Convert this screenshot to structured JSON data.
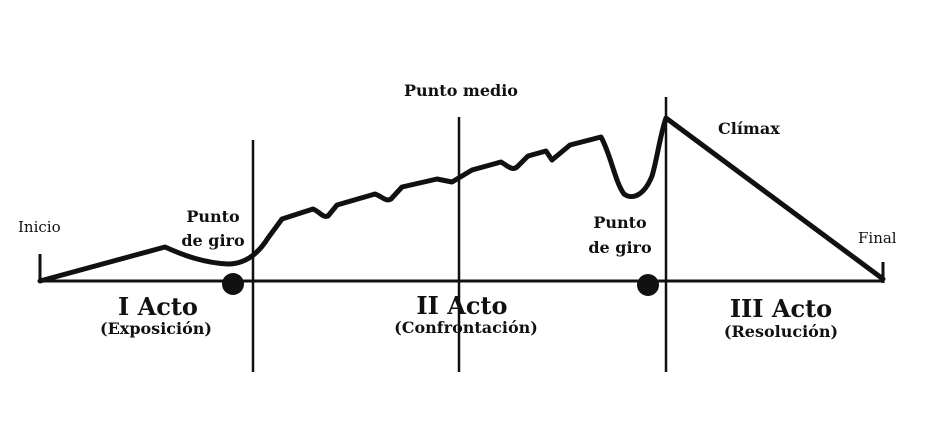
{
  "diagram": {
    "labels": {
      "start": "Inicio",
      "end": "Final",
      "midpoint": "Punto medio",
      "climax": "Clímax",
      "turning_point_1_line1": "Punto",
      "turning_point_1_line2": "de giro",
      "turning_point_2_line1": "Punto",
      "turning_point_2_line2": "de giro"
    },
    "acts": [
      {
        "title": "I Acto",
        "subtitle": "(Exposición)"
      },
      {
        "title": "II Acto",
        "subtitle": "(Confrontación)"
      },
      {
        "title": "III Acto",
        "subtitle": "(Resolución)"
      }
    ],
    "colors": {
      "ink": "#111111",
      "background": "#ffffff"
    }
  }
}
